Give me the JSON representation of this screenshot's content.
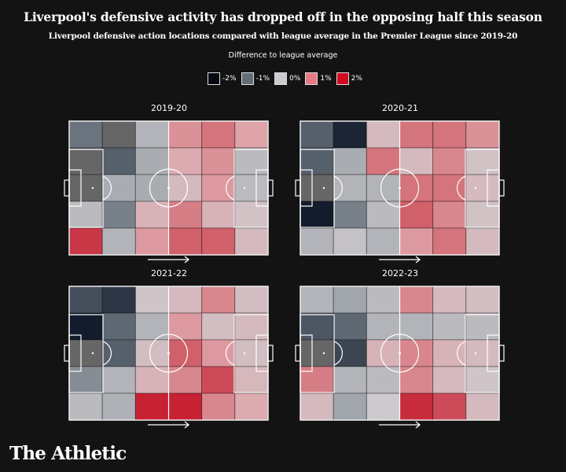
{
  "title": "Liverpool's defensive activity has dropped off in the opposing half this season",
  "subtitle": "Liverpool defensive action locations compared with league average in the Premier League since 2019-20",
  "logo": "The Athletic",
  "chart_data": {
    "type": "heatmap",
    "legend": {
      "title": "Difference to league average",
      "items": [
        {
          "label": "-2%",
          "value": -2,
          "color": "#050a12"
        },
        {
          "label": "-1%",
          "value": -1,
          "color": "#636d78"
        },
        {
          "label": "0%",
          "value": 0,
          "color": "#cacbd0"
        },
        {
          "label": "1%",
          "value": 1,
          "color": "#e77b85"
        },
        {
          "label": "2%",
          "value": 2,
          "color": "#d20a1e"
        }
      ]
    },
    "unit": "%",
    "grid": {
      "columns": 6,
      "rows": 5
    },
    "attack_direction": "left-to-right",
    "no_data_color": "#666666",
    "panels": [
      {
        "season": "2019-20",
        "values": [
          [
            -0.9,
            null,
            -0.3,
            0.7,
            1.0,
            0.5
          ],
          [
            null,
            -1.1,
            -0.4,
            0.4,
            0.7,
            -0.2
          ],
          [
            null,
            -0.4,
            -0.4,
            0.2,
            0.6,
            -0.2
          ],
          [
            -0.2,
            -0.8,
            0.3,
            0.9,
            0.3,
            0.1
          ],
          [
            1.6,
            -0.3,
            0.6,
            1.2,
            1.2,
            0.2
          ]
        ]
      },
      {
        "season": "2020-21",
        "values": [
          [
            -1.1,
            -1.8,
            0.2,
            1.0,
            1.0,
            0.7
          ],
          [
            -1.1,
            -0.4,
            1.0,
            0.2,
            0.8,
            0.1
          ],
          [
            null,
            -0.3,
            -0.3,
            1.0,
            1.0,
            0.2
          ],
          [
            -1.9,
            -0.8,
            -0.2,
            1.2,
            0.8,
            0.1
          ],
          [
            -0.3,
            -0.1,
            -0.3,
            0.6,
            1.0,
            0.2
          ]
        ]
      },
      {
        "season": "2021-22",
        "values": [
          [
            -1.3,
            -1.6,
            0.05,
            0.2,
            0.8,
            0.15
          ],
          [
            -1.9,
            -1.0,
            -0.3,
            0.6,
            0.15,
            0.2
          ],
          [
            null,
            -1.1,
            0.15,
            1.2,
            0.6,
            0.15
          ],
          [
            -0.7,
            -0.3,
            0.3,
            0.8,
            1.4,
            0.25
          ],
          [
            -0.2,
            -0.35,
            1.8,
            1.8,
            0.8,
            0.4
          ]
        ]
      },
      {
        "season": "2022-23",
        "values": [
          [
            -0.3,
            -0.5,
            -0.2,
            0.8,
            0.2,
            0.15
          ],
          [
            -1.2,
            -1.0,
            -0.3,
            -0.3,
            -0.2,
            -0.2
          ],
          [
            null,
            -1.4,
            0.3,
            0.8,
            0.3,
            0.2
          ],
          [
            0.9,
            -0.3,
            -0.2,
            0.8,
            0.2,
            0.05
          ],
          [
            0.2,
            -0.5,
            0.0,
            1.7,
            1.4,
            0.2
          ]
        ]
      }
    ]
  }
}
